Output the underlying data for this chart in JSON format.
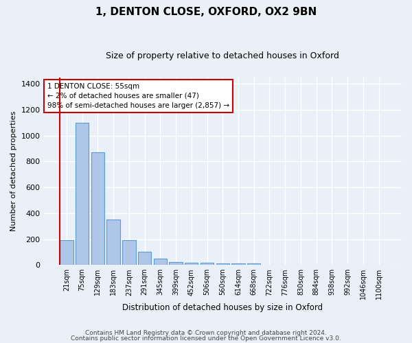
{
  "title1": "1, DENTON CLOSE, OXFORD, OX2 9BN",
  "title2": "Size of property relative to detached houses in Oxford",
  "xlabel": "Distribution of detached houses by size in Oxford",
  "ylabel": "Number of detached properties",
  "categories": [
    "21sqm",
    "75sqm",
    "129sqm",
    "183sqm",
    "237sqm",
    "291sqm",
    "345sqm",
    "399sqm",
    "452sqm",
    "506sqm",
    "560sqm",
    "614sqm",
    "668sqm",
    "722sqm",
    "776sqm",
    "830sqm",
    "884sqm",
    "938sqm",
    "992sqm",
    "1046sqm",
    "1100sqm"
  ],
  "values": [
    190,
    1100,
    870,
    350,
    190,
    100,
    50,
    25,
    20,
    18,
    15,
    15,
    10,
    0,
    0,
    0,
    0,
    0,
    0,
    0,
    0
  ],
  "bar_color": "#aec6e8",
  "bar_edge_color": "#5b9bd5",
  "bg_color": "#eaf0f8",
  "grid_color": "#ffffff",
  "ylim": [
    0,
    1450
  ],
  "yticks": [
    0,
    200,
    400,
    600,
    800,
    1000,
    1200,
    1400
  ],
  "red_line_color": "#cc0000",
  "annotation_text": "1 DENTON CLOSE: 55sqm\n← 2% of detached houses are smaller (47)\n98% of semi-detached houses are larger (2,857) →",
  "annotation_box_color": "#ffffff",
  "annotation_box_edge": "#cc0000",
  "footer1": "Contains HM Land Registry data © Crown copyright and database right 2024.",
  "footer2": "Contains public sector information licensed under the Open Government Licence v3.0."
}
